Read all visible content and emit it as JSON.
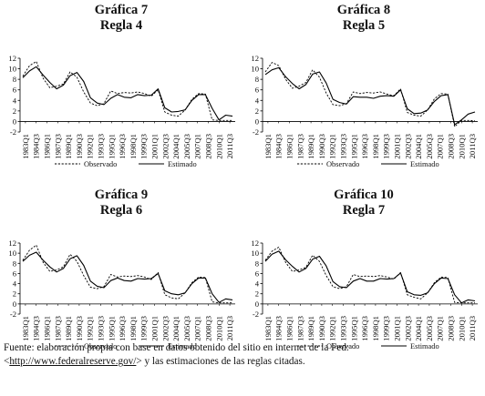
{
  "charts": [
    {
      "title_line1": "Gráfica 7",
      "title_line2": "Regla 4",
      "chart_data": {
        "type": "line",
        "ylim": [
          -2,
          12
        ],
        "yticks": [
          -2,
          0,
          2,
          4,
          6,
          8,
          10,
          12
        ],
        "x_tick_labels": [
          "1983Q1",
          "1984Q3",
          "1986Q1",
          "1987Q3",
          "1989Q1",
          "1990Q3",
          "1992Q1",
          "1993Q3",
          "1995Q1",
          "1996Q3",
          "1998Q1",
          "1999Q3",
          "2001Q1",
          "2002Q3",
          "2004Q1",
          "2005Q3",
          "2007Q1",
          "2008Q3",
          "2010Q1",
          "2011Q3"
        ],
        "legend": [
          "Observado",
          "Estimado"
        ],
        "series": [
          {
            "name": "Observado",
            "style": "dashed",
            "values": [
              8.6,
              10.6,
              11.4,
              8.2,
              6.4,
              6.7,
              7.1,
              9.4,
              8.4,
              5.6,
              3.5,
              3.0,
              3.4,
              5.8,
              5.3,
              5.5,
              5.4,
              5.6,
              5.3,
              4.8,
              6.0,
              1.8,
              1.2,
              1.0,
              2.2,
              4.2,
              5.3,
              5.2,
              0.3,
              0.2,
              0.2,
              0.2
            ]
          },
          {
            "name": "Estimado",
            "style": "solid",
            "values": [
              8.3,
              9.6,
              10.4,
              8.8,
              7.4,
              6.2,
              6.9,
              8.7,
              9.3,
              7.6,
              4.5,
              3.5,
              3.2,
              4.4,
              5.1,
              4.6,
              4.5,
              5.1,
              4.9,
              5.0,
              6.2,
              2.6,
              1.8,
              1.9,
              2.2,
              4.0,
              5.1,
              5.1,
              2.5,
              0.3,
              1.2,
              1.0
            ]
          }
        ]
      }
    },
    {
      "title_line1": "Gráfica 8",
      "title_line2": "Regla 5",
      "chart_data": {
        "type": "line",
        "ylim": [
          -2,
          12
        ],
        "yticks": [
          -2,
          0,
          2,
          4,
          6,
          8,
          10,
          12
        ],
        "x_tick_labels": [
          "1983Q1",
          "1984Q3",
          "1986Q1",
          "1987Q3",
          "1989Q1",
          "1990Q3",
          "1992Q1",
          "1993Q3",
          "1995Q1",
          "1996Q3",
          "1998Q1",
          "1999Q3",
          "2001Q1",
          "2002Q3",
          "2004Q1",
          "2005Q3",
          "2007Q1",
          "2008Q3",
          "2010Q1",
          "2011Q3"
        ],
        "legend": [
          "Observado",
          "Estimado"
        ],
        "series": [
          {
            "name": "Observado",
            "style": "dashed",
            "values": [
              9.4,
              11.2,
              10.6,
              8.0,
              6.3,
              6.7,
              7.4,
              9.8,
              8.4,
              5.4,
              3.2,
              3.0,
              3.4,
              5.6,
              5.3,
              5.5,
              5.4,
              5.6,
              5.2,
              4.9,
              6.2,
              1.7,
              1.2,
              1.0,
              2.2,
              4.3,
              5.3,
              5.2,
              -1.0,
              0.2,
              0.2,
              0.1
            ]
          },
          {
            "name": "Estimado",
            "style": "solid",
            "values": [
              8.9,
              9.8,
              10.2,
              8.5,
              7.2,
              6.2,
              7.0,
              9.0,
              9.4,
              7.3,
              4.2,
              3.6,
              3.3,
              4.7,
              4.6,
              4.6,
              4.4,
              4.8,
              4.9,
              4.8,
              6.0,
              2.4,
              1.5,
              1.6,
              2.2,
              3.8,
              4.9,
              5.1,
              -0.6,
              0.3,
              1.4,
              1.8
            ]
          }
        ]
      }
    },
    {
      "title_line1": "Gráfica 9",
      "title_line2": "Regla 6",
      "chart_data": {
        "type": "line",
        "ylim": [
          -2,
          12
        ],
        "yticks": [
          -2,
          0,
          2,
          4,
          6,
          8,
          10,
          12
        ],
        "x_tick_labels": [
          "1983Q1",
          "1984Q3",
          "1986Q1",
          "1987Q3",
          "1989Q1",
          "1990Q3",
          "1992Q1",
          "1993Q3",
          "1995Q1",
          "1996Q3",
          "1998Q1",
          "1999Q3",
          "2001Q1",
          "2002Q3",
          "2004Q1",
          "2005Q3",
          "2007Q1",
          "2008Q3",
          "2010Q1",
          "2011Q3"
        ],
        "legend": [
          "Observado",
          "Estimado"
        ],
        "series": [
          {
            "name": "Observado",
            "style": "dashed",
            "values": [
              8.6,
              10.6,
              11.6,
              8.2,
              6.4,
              6.7,
              7.3,
              9.8,
              8.4,
              5.6,
              3.3,
              3.0,
              3.4,
              5.8,
              5.3,
              5.5,
              5.4,
              5.6,
              5.3,
              4.8,
              6.2,
              1.8,
              1.2,
              1.0,
              2.2,
              4.2,
              5.3,
              5.2,
              0.4,
              0.2,
              0.2,
              0.2
            ]
          },
          {
            "name": "Estimado",
            "style": "solid",
            "values": [
              8.4,
              9.6,
              10.2,
              8.6,
              7.3,
              6.3,
              7.0,
              8.9,
              9.5,
              7.6,
              4.5,
              3.5,
              3.2,
              4.6,
              5.1,
              4.6,
              4.5,
              5.0,
              4.9,
              5.0,
              6.0,
              2.6,
              2.0,
              1.8,
              2.2,
              4.0,
              5.1,
              5.1,
              2.0,
              0.3,
              1.0,
              0.8
            ]
          }
        ]
      }
    },
    {
      "title_line1": "Gráfica 10",
      "title_line2": "Regla 7",
      "chart_data": {
        "type": "line",
        "ylim": [
          -2,
          12
        ],
        "yticks": [
          -2,
          0,
          2,
          4,
          6,
          8,
          10,
          12
        ],
        "x_tick_labels": [
          "1983Q1",
          "1984Q3",
          "1986Q1",
          "1987Q3",
          "1989Q1",
          "1990Q3",
          "1992Q1",
          "1993Q3",
          "1995Q1",
          "1996Q3",
          "1998Q1",
          "1999Q3",
          "2001Q1",
          "2002Q3",
          "2004Q1",
          "2005Q3",
          "2007Q1",
          "2008Q3",
          "2010Q1",
          "2011Q3"
        ],
        "legend": [
          "Observado",
          "Estimado"
        ],
        "series": [
          {
            "name": "Observado",
            "style": "dashed",
            "values": [
              8.6,
              10.4,
              11.2,
              8.2,
              6.4,
              6.7,
              7.2,
              9.6,
              8.4,
              5.6,
              3.4,
              3.0,
              3.4,
              5.8,
              5.4,
              5.5,
              5.4,
              5.6,
              5.3,
              4.9,
              6.2,
              1.8,
              1.3,
              1.0,
              2.2,
              4.2,
              5.3,
              5.2,
              0.3,
              0.2,
              0.2,
              0.2
            ]
          },
          {
            "name": "Estimado",
            "style": "solid",
            "values": [
              8.4,
              9.8,
              10.4,
              8.7,
              7.4,
              6.3,
              7.0,
              8.8,
              9.4,
              7.5,
              4.4,
              3.4,
              3.2,
              4.5,
              5.0,
              4.5,
              4.5,
              5.0,
              4.9,
              5.0,
              6.1,
              2.4,
              1.8,
              1.7,
              2.2,
              4.0,
              5.1,
              5.0,
              1.8,
              0.2,
              0.8,
              0.6
            ]
          }
        ]
      }
    }
  ],
  "source": {
    "text": "Fuente: elaboración propia con base en datos obtenido del sitio en internet de la Fed: <",
    "link": "http://www.federalreserve.gov/",
    "suffix": "> y las estimaciones de las reglas citadas."
  }
}
